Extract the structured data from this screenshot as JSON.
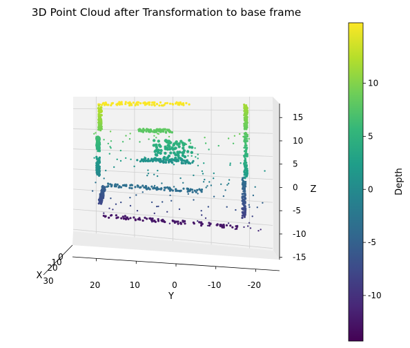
{
  "chart_data": {
    "type": "scatter",
    "projection": "3d",
    "title": "3D Point Cloud after Transformation to base frame",
    "xlabel": "X",
    "ylabel": "Y",
    "zlabel": "Z",
    "x_ticks": [
      "0",
      "10",
      "20",
      "30"
    ],
    "y_ticks": [
      20,
      10,
      0,
      -10,
      -20
    ],
    "z_ticks": [
      15,
      10,
      5,
      0,
      -5,
      -10,
      -15
    ],
    "ylim": [
      26,
      -26
    ],
    "zlim": [
      -15.5,
      18
    ],
    "grid": true,
    "colorbar": {
      "label": "Depth",
      "colormap": "viridis",
      "min": -14.3,
      "max": 15.7,
      "ticks": [
        10,
        5,
        0,
        -5,
        -10
      ]
    },
    "colormap_stops": [
      "#440154",
      "#482878",
      "#3e4989",
      "#31688e",
      "#26828e",
      "#1f9e89",
      "#35b779",
      "#6ece58",
      "#b5de2b",
      "#fde725"
    ],
    "structures": [
      {
        "name": "ceiling-beam",
        "y": [
          19,
          -4
        ],
        "z": [
          16.3,
          16.3
        ],
        "depth": 15.5
      },
      {
        "name": "left-upper-post",
        "y": [
          19,
          19
        ],
        "z": [
          15.5,
          10
        ],
        "depth": 11
      },
      {
        "name": "left-mid-post",
        "y": [
          19.5,
          19.5
        ],
        "z": [
          8,
          5
        ],
        "depth": 5.5
      },
      {
        "name": "left-lower-post",
        "y": [
          19.5,
          19.5
        ],
        "z": [
          3,
          -1
        ],
        "depth": 1
      },
      {
        "name": "left-bottom-cluster",
        "y": [
          18,
          19
        ],
        "z": [
          -4,
          -8
        ],
        "depth": -6.5
      },
      {
        "name": "right-upper-post",
        "y": [
          -19,
          -19
        ],
        "z": [
          16,
          11
        ],
        "depth": 10
      },
      {
        "name": "right-mid-post",
        "y": [
          -19,
          -19
        ],
        "z": [
          10,
          0
        ],
        "depth": 5
      },
      {
        "name": "right-lower-post",
        "y": [
          -18.5,
          -18.5
        ],
        "z": [
          0,
          -9
        ],
        "depth": -6
      },
      {
        "name": "upper-shelf",
        "y": [
          9,
          0.5
        ],
        "z": [
          10,
          10
        ],
        "depth": 8
      },
      {
        "name": "central-block",
        "y": [
          5,
          -5
        ],
        "z": [
          8,
          3
        ],
        "depth": 4
      },
      {
        "name": "mid-frame",
        "y": [
          9,
          -5
        ],
        "z": [
          3,
          3
        ],
        "depth": 1
      },
      {
        "name": "lower-rail",
        "y": [
          17,
          -8
        ],
        "z": [
          -3.5,
          -3.5
        ],
        "depth": -3.5
      },
      {
        "name": "floor-band",
        "y": [
          19,
          -17
        ],
        "z": [
          -11,
          -11
        ],
        "depth": -12.5
      }
    ]
  }
}
